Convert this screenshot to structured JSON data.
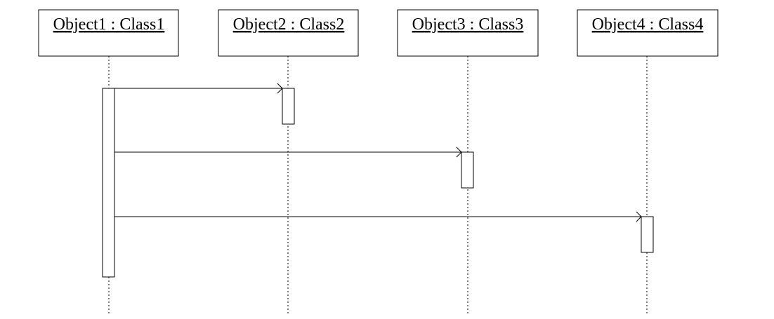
{
  "diagram": {
    "type": "sequence",
    "colors": {
      "stroke": "#000000",
      "background": "#ffffff"
    },
    "objects": [
      {
        "id": "obj1",
        "label": "Object1 : Class1"
      },
      {
        "id": "obj2",
        "label": "Object2 : Class2"
      },
      {
        "id": "obj3",
        "label": "Object3 : Class3"
      },
      {
        "id": "obj4",
        "label": "Object4 : Class4"
      }
    ],
    "messages": [
      {
        "from": "obj1",
        "to": "obj2",
        "label": ""
      },
      {
        "from": "obj1",
        "to": "obj3",
        "label": ""
      },
      {
        "from": "obj1",
        "to": "obj4",
        "label": ""
      }
    ]
  }
}
